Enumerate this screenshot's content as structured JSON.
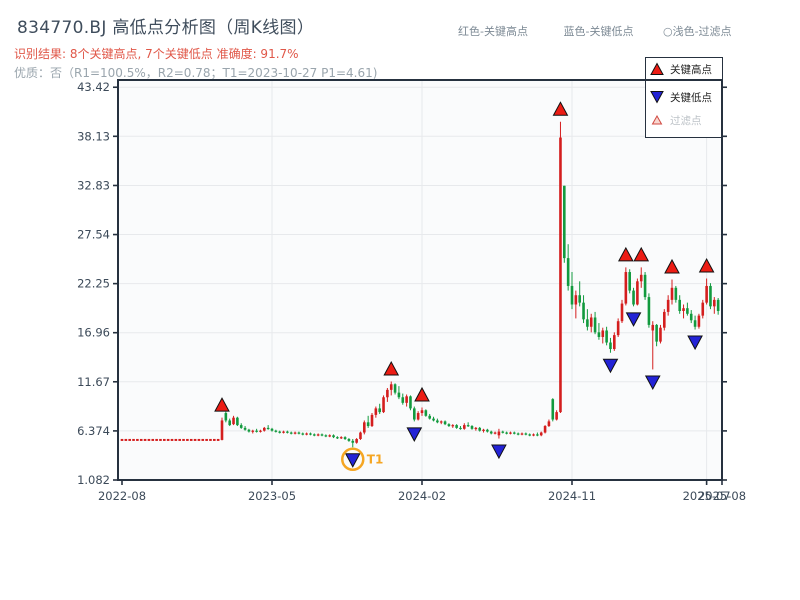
{
  "header": {
    "title": "834770.BJ 高低点分析图（周K线图）",
    "result_line": "识别结果: 8个关键高点, 7个关键低点  准确度: 91.7%",
    "quality_line": "优质：否（R1=100.5%，R2=0.78；T1=2023-10-27 P1=4.61)",
    "top_legend": [
      {
        "label": "红色-关键高点"
      },
      {
        "label": "蓝色-关键低点"
      },
      {
        "label": "○浅色-过滤点"
      }
    ]
  },
  "legend_box": {
    "items": [
      {
        "label": "关键高点",
        "marker": "red-up-triangle",
        "muted": false
      },
      {
        "label": "关键低点",
        "marker": "blue-down-triangle",
        "muted": false
      },
      {
        "label": "过滤点",
        "marker": "hollow-triangle",
        "muted": true
      }
    ]
  },
  "colors": {
    "up": "#d41e1e",
    "down": "#129a3e",
    "marker_high": "#ec1c14",
    "marker_low": "#2323d6",
    "marker_edge": "#111111",
    "filter_fill": "#f8d7d0",
    "filter_stroke": "#d04840",
    "highlight_ring": "#f5a623",
    "spine": "#26313f",
    "grid": "#e7e9ec",
    "tick_label": "#3c4a59",
    "plot_bg": "#fafbfc",
    "legend_muted_text": "#bcc2c7",
    "legend_text": "#222222"
  },
  "chart_data": {
    "type": "candlestick",
    "title": "834770.BJ 高低点分析图（周K线图）",
    "interval": "weekly",
    "grid": true,
    "legend_position": "top-right",
    "ylim": [
      1.082,
      44.2
    ],
    "y_ticks": [
      {
        "value": 43.42,
        "label": "43.42"
      },
      {
        "value": 38.13,
        "label": "38.13"
      },
      {
        "value": 32.83,
        "label": "32.83"
      },
      {
        "value": 27.54,
        "label": "27.54"
      },
      {
        "value": 22.25,
        "label": "22.25"
      },
      {
        "value": 16.96,
        "label": "16.96"
      },
      {
        "value": 11.67,
        "label": "11.67"
      },
      {
        "value": 6.374,
        "label": "6.374"
      },
      {
        "value": 1.082,
        "label": "1.082"
      }
    ],
    "x_ticks": [
      {
        "week": 0,
        "label": "2022-08"
      },
      {
        "week": 39,
        "label": "2023-05"
      },
      {
        "week": 78,
        "label": "2024-02"
      },
      {
        "week": 117,
        "label": "2024-11"
      },
      {
        "week": 152,
        "label": "2025-07"
      },
      {
        "week": 156,
        "label": "2025-08"
      }
    ],
    "flat_weeks": 26,
    "flat_price": 5.4,
    "candles": [
      [
        5.4,
        7.8,
        5.35,
        7.5
      ],
      [
        8.3,
        8.45,
        7.3,
        7.5
      ],
      [
        7.5,
        7.7,
        6.9,
        7.0
      ],
      [
        7.1,
        8.0,
        7.0,
        7.8
      ],
      [
        7.8,
        7.9,
        6.9,
        7.0
      ],
      [
        7.0,
        7.2,
        6.6,
        6.7
      ],
      [
        6.7,
        6.9,
        6.4,
        6.5
      ],
      [
        6.5,
        6.6,
        6.2,
        6.3
      ],
      [
        6.3,
        6.5,
        6.1,
        6.4
      ],
      [
        6.4,
        6.6,
        6.2,
        6.3
      ],
      [
        6.3,
        6.5,
        6.2,
        6.4
      ],
      [
        6.4,
        6.8,
        6.3,
        6.7
      ],
      [
        6.7,
        7.0,
        6.5,
        6.6
      ],
      [
        6.6,
        6.7,
        6.3,
        6.4
      ],
      [
        6.4,
        6.5,
        6.2,
        6.3
      ],
      [
        6.3,
        6.4,
        6.1,
        6.2
      ],
      [
        6.2,
        6.4,
        6.1,
        6.3
      ],
      [
        6.3,
        6.4,
        6.1,
        6.2
      ],
      [
        6.2,
        6.3,
        6.0,
        6.1
      ],
      [
        6.1,
        6.3,
        6.0,
        6.2
      ],
      [
        6.2,
        6.3,
        6.0,
        6.1
      ],
      [
        6.1,
        6.2,
        5.9,
        6.0
      ],
      [
        6.0,
        6.2,
        5.9,
        6.1
      ],
      [
        6.1,
        6.2,
        5.9,
        6.0
      ],
      [
        6.0,
        6.1,
        5.8,
        5.9
      ],
      [
        5.9,
        6.1,
        5.8,
        6.0
      ],
      [
        6.0,
        6.1,
        5.8,
        5.9
      ],
      [
        5.9,
        6.0,
        5.7,
        5.8
      ],
      [
        5.8,
        6.0,
        5.7,
        5.9
      ],
      [
        5.9,
        6.0,
        5.6,
        5.7
      ],
      [
        5.7,
        5.8,
        5.5,
        5.6
      ],
      [
        5.6,
        5.8,
        5.5,
        5.7
      ],
      [
        5.7,
        5.8,
        5.4,
        5.5
      ],
      [
        5.5,
        5.6,
        5.2,
        5.3
      ],
      [
        5.3,
        5.5,
        4.61,
        5.1
      ],
      [
        5.1,
        5.6,
        5.0,
        5.5
      ],
      [
        5.5,
        6.3,
        5.4,
        6.2
      ],
      [
        6.2,
        7.5,
        6.0,
        7.3
      ],
      [
        7.3,
        8.0,
        6.7,
        6.9
      ],
      [
        6.9,
        8.3,
        6.8,
        8.1
      ],
      [
        8.1,
        9.0,
        7.8,
        8.8
      ],
      [
        8.8,
        9.3,
        8.2,
        8.4
      ],
      [
        8.4,
        10.2,
        8.3,
        10.0
      ],
      [
        10.0,
        11.0,
        9.5,
        10.8
      ],
      [
        10.8,
        11.7,
        10.2,
        11.4
      ],
      [
        11.4,
        11.5,
        10.3,
        10.5
      ],
      [
        10.5,
        11.2,
        9.8,
        10.0
      ],
      [
        10.0,
        10.4,
        9.2,
        9.4
      ],
      [
        9.4,
        10.3,
        9.0,
        10.1
      ],
      [
        10.1,
        10.2,
        8.6,
        8.8
      ],
      [
        8.8,
        9.0,
        7.4,
        7.6
      ],
      [
        7.6,
        8.5,
        7.5,
        8.3
      ],
      [
        8.3,
        8.9,
        8.0,
        8.6
      ],
      [
        8.6,
        8.7,
        7.9,
        8.0
      ],
      [
        8.0,
        8.2,
        7.6,
        7.7
      ],
      [
        7.7,
        7.9,
        7.4,
        7.5
      ],
      [
        7.5,
        7.7,
        7.2,
        7.3
      ],
      [
        7.3,
        7.5,
        7.1,
        7.4
      ],
      [
        7.4,
        7.5,
        7.0,
        7.1
      ],
      [
        7.1,
        7.2,
        6.8,
        6.9
      ],
      [
        6.9,
        7.1,
        6.7,
        7.0
      ],
      [
        7.0,
        7.1,
        6.6,
        6.7
      ],
      [
        6.7,
        6.9,
        6.5,
        6.6
      ],
      [
        6.6,
        7.2,
        6.5,
        7.0
      ],
      [
        7.0,
        7.3,
        6.8,
        6.9
      ],
      [
        6.9,
        7.0,
        6.5,
        6.6
      ],
      [
        6.6,
        6.8,
        6.4,
        6.7
      ],
      [
        6.7,
        6.8,
        6.3,
        6.4
      ],
      [
        6.4,
        6.6,
        6.2,
        6.5
      ],
      [
        6.5,
        6.6,
        6.2,
        6.3
      ],
      [
        6.3,
        6.4,
        6.0,
        6.1
      ],
      [
        6.1,
        6.3,
        6.0,
        6.2
      ],
      [
        5.9,
        6.6,
        5.55,
        6.3
      ],
      [
        6.3,
        6.4,
        6.1,
        6.2
      ],
      [
        6.2,
        6.3,
        6.0,
        6.1
      ],
      [
        6.1,
        6.3,
        6.0,
        6.2
      ],
      [
        6.2,
        6.3,
        6.0,
        6.1
      ],
      [
        6.1,
        6.2,
        5.9,
        6.0
      ],
      [
        6.0,
        6.2,
        5.9,
        6.1
      ],
      [
        6.1,
        6.2,
        5.9,
        6.0
      ],
      [
        6.0,
        6.1,
        5.8,
        5.9
      ],
      [
        5.9,
        6.1,
        5.8,
        6.0
      ],
      [
        6.0,
        6.2,
        5.8,
        5.9
      ],
      [
        5.9,
        6.3,
        5.8,
        6.2
      ],
      [
        6.2,
        7.0,
        6.1,
        6.9
      ],
      [
        6.9,
        7.6,
        6.8,
        7.4
      ],
      [
        9.8,
        9.9,
        7.4,
        7.6
      ],
      [
        7.6,
        8.6,
        7.5,
        8.4
      ],
      [
        8.4,
        39.7,
        8.3,
        38.0
      ],
      [
        32.8,
        32.8,
        24.5,
        25.0
      ],
      [
        25.0,
        26.5,
        21.5,
        22.0
      ],
      [
        22.0,
        23.5,
        19.5,
        20.0
      ],
      [
        20.0,
        21.5,
        18.5,
        21.0
      ],
      [
        21.0,
        22.5,
        19.8,
        20.2
      ],
      [
        20.2,
        21.0,
        18.0,
        18.4
      ],
      [
        18.4,
        19.5,
        17.2,
        17.6
      ],
      [
        17.6,
        19.0,
        17.0,
        18.6
      ],
      [
        18.6,
        19.2,
        16.8,
        17.0
      ],
      [
        17.0,
        18.0,
        16.2,
        16.5
      ],
      [
        16.5,
        17.5,
        15.8,
        17.2
      ],
      [
        17.2,
        17.6,
        15.6,
        15.9
      ],
      [
        15.9,
        16.4,
        14.8,
        15.2
      ],
      [
        15.2,
        17.0,
        15.0,
        16.7
      ],
      [
        16.7,
        18.5,
        16.5,
        18.2
      ],
      [
        18.2,
        20.5,
        18.0,
        20.1
      ],
      [
        20.1,
        24.0,
        19.9,
        23.5
      ],
      [
        23.5,
        23.8,
        21.2,
        21.5
      ],
      [
        21.5,
        21.8,
        19.8,
        20.0
      ],
      [
        20.0,
        22.8,
        19.9,
        22.5
      ],
      [
        22.5,
        24.0,
        21.8,
        23.2
      ],
      [
        23.2,
        23.5,
        20.5,
        20.8
      ],
      [
        20.8,
        21.2,
        17.5,
        17.8
      ],
      [
        17.2,
        18.2,
        13.0,
        17.8
      ],
      [
        17.8,
        17.9,
        15.5,
        16.0
      ],
      [
        16.0,
        17.8,
        15.8,
        17.5
      ],
      [
        17.5,
        19.5,
        17.2,
        19.2
      ],
      [
        19.2,
        21.0,
        18.8,
        20.5
      ],
      [
        20.5,
        22.7,
        20.0,
        21.8
      ],
      [
        21.8,
        22.0,
        20.2,
        20.5
      ],
      [
        20.5,
        21.0,
        19.0,
        19.3
      ],
      [
        19.3,
        20.0,
        18.5,
        19.6
      ],
      [
        19.6,
        20.2,
        18.8,
        19.0
      ],
      [
        19.0,
        19.4,
        18.0,
        18.3
      ],
      [
        18.3,
        18.8,
        17.3,
        17.6
      ],
      [
        17.6,
        19.0,
        17.4,
        18.8
      ],
      [
        18.8,
        20.5,
        18.5,
        20.2
      ],
      [
        20.2,
        22.8,
        20.0,
        22.0
      ],
      [
        22.0,
        22.3,
        19.5,
        19.8
      ],
      [
        19.8,
        20.8,
        19.0,
        20.5
      ],
      [
        20.5,
        20.7,
        18.9,
        19.3
      ]
    ],
    "key_highs": [
      {
        "week": 26,
        "price": 7.8
      },
      {
        "week": 70,
        "price": 11.7
      },
      {
        "week": 78,
        "price": 8.9
      },
      {
        "week": 114,
        "price": 39.7
      },
      {
        "week": 131,
        "price": 24.0
      },
      {
        "week": 135,
        "price": 24.0
      },
      {
        "week": 143,
        "price": 22.7
      },
      {
        "week": 152,
        "price": 22.8
      }
    ],
    "key_lows": [
      {
        "week": 60,
        "price": 4.61,
        "circled": true,
        "label": "T1"
      },
      {
        "week": 76,
        "price": 7.4
      },
      {
        "week": 98,
        "price": 5.55
      },
      {
        "week": 127,
        "price": 14.8
      },
      {
        "week": 133,
        "price": 19.8
      },
      {
        "week": 138,
        "price": 13.0
      },
      {
        "week": 149,
        "price": 17.3
      }
    ]
  }
}
